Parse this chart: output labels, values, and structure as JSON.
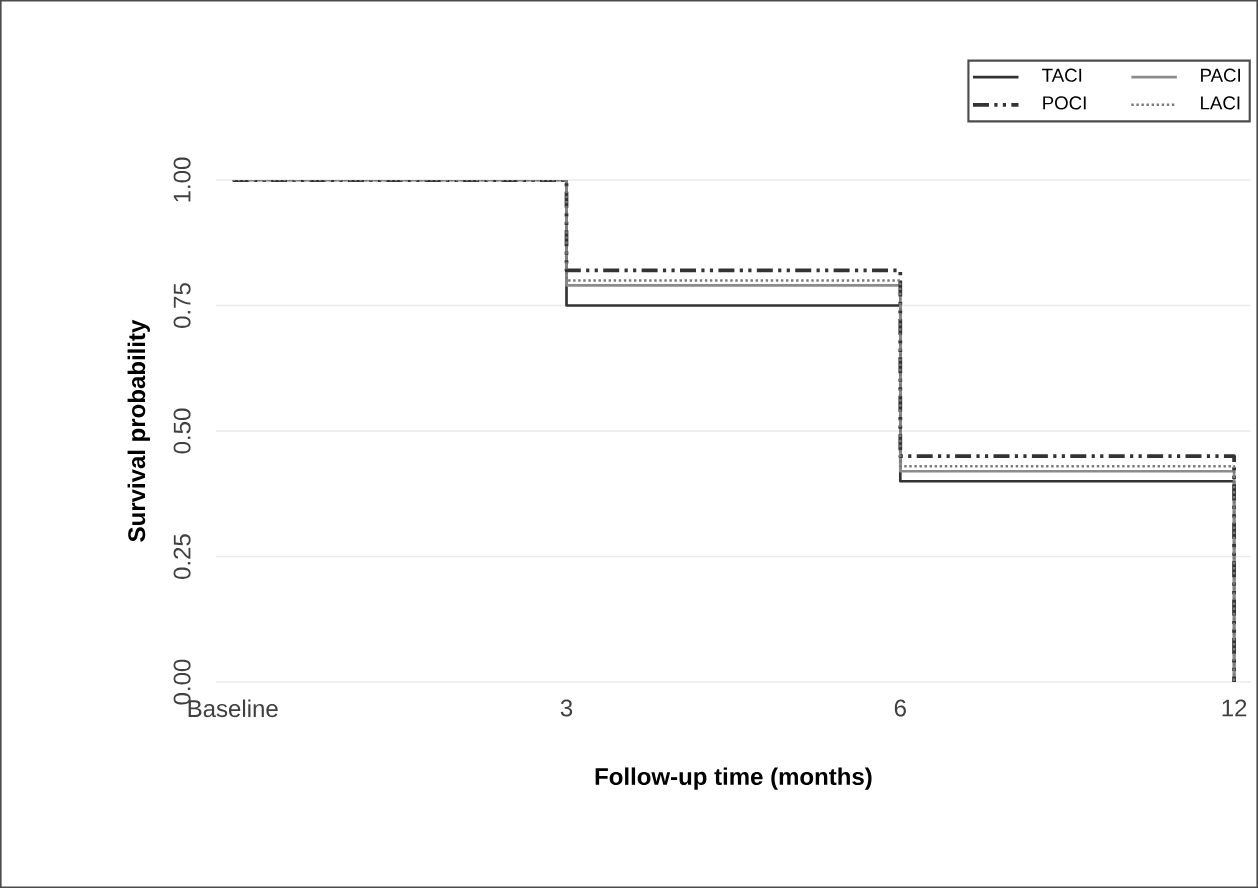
{
  "chart_data": {
    "type": "step",
    "xlabel": "Follow-up time (months)",
    "ylabel": "Survival probability",
    "categories": [
      "Baseline",
      "3",
      "6",
      "12"
    ],
    "series": [
      {
        "name": "TACI",
        "color": "#333333",
        "line_style": "solid",
        "values": [
          1,
          0.75,
          0.4,
          0
        ]
      },
      {
        "name": "PACI",
        "color": "#8c8c8c",
        "line_style": "solid",
        "values": [
          1,
          0.79,
          0.42,
          0
        ]
      },
      {
        "name": "POCI",
        "color": "#333333",
        "line_style": "dashdot",
        "values": [
          1,
          0.82,
          0.45,
          0
        ]
      },
      {
        "name": "LACI",
        "color": "#7a7a7a",
        "line_style": "dotted",
        "values": [
          1,
          0.8,
          0.43,
          0
        ]
      }
    ],
    "ylim": [
      0,
      1
    ],
    "yticks": [
      {
        "value": 0,
        "label": "0.00"
      },
      {
        "value": 0.25,
        "label": "0.25"
      },
      {
        "value": 0.5,
        "label": "0.50"
      },
      {
        "value": 0.75,
        "label": "0.75"
      },
      {
        "value": 1,
        "label": "1.00"
      }
    ],
    "grid": "y",
    "legend": "top right",
    "marker": "none"
  }
}
